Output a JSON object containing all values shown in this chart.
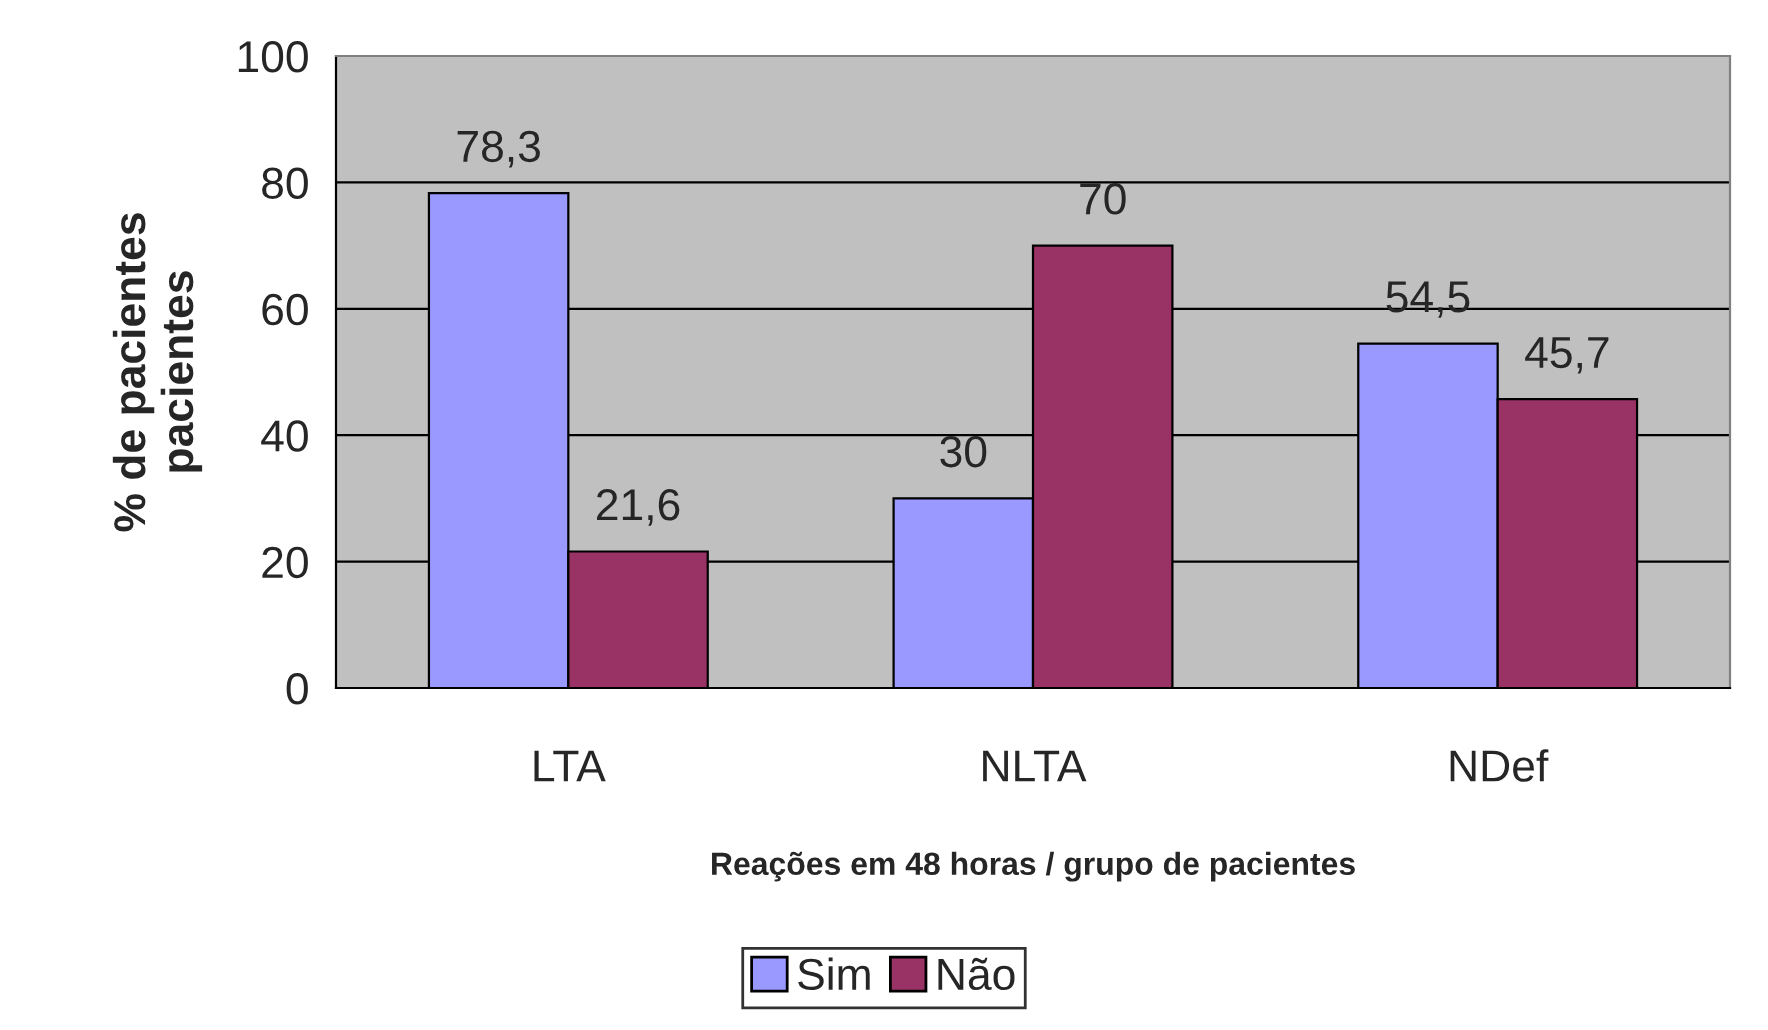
{
  "chart_data": {
    "type": "bar",
    "xlabel": "Reações em 48 horas / grupo de pacientes",
    "ylabel": "% de pacientes\npacientes",
    "categories": [
      "LTA",
      "NLTA",
      "NDef"
    ],
    "series": [
      {
        "name": "Sim",
        "color": "#9999ff",
        "values": [
          78.3,
          30,
          54.5
        ],
        "value_labels": [
          "78,3",
          "30",
          "54,5"
        ]
      },
      {
        "name": "Não",
        "color": "#993366",
        "values": [
          21.6,
          70,
          45.7
        ],
        "value_labels": [
          "21,6",
          "70",
          "45,7"
        ]
      }
    ],
    "ylim": [
      0,
      100
    ],
    "yticks": [
      0,
      20,
      40,
      60,
      80,
      100
    ],
    "grid": "y",
    "legend": "bottom"
  }
}
